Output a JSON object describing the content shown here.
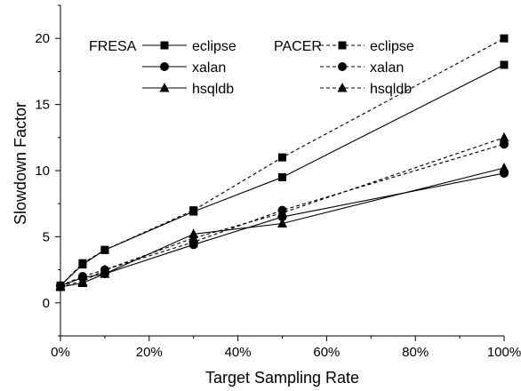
{
  "chart_data": {
    "type": "line",
    "xlabel": "Target Sampling Rate",
    "ylabel": "Slowdown Factor",
    "xlim": [
      0,
      100
    ],
    "ylim": [
      -2.5,
      22.5
    ],
    "x_ticks": [
      0,
      20,
      40,
      60,
      80,
      100
    ],
    "x_tick_labels": [
      "0%",
      "20%",
      "40%",
      "60%",
      "80%",
      "100%"
    ],
    "y_ticks": [
      0,
      5,
      10,
      15,
      20
    ],
    "y_tick_labels": [
      "0",
      "5",
      "10",
      "15",
      "20"
    ],
    "grid": false,
    "legend_position": "top-left",
    "legend_groups": [
      "FRESA",
      "PACER"
    ],
    "series": [
      {
        "name": "eclipse",
        "group": "FRESA",
        "line": "solid",
        "marker": "square",
        "x": [
          0,
          5,
          10,
          30,
          50,
          100
        ],
        "y": [
          1.3,
          2.9,
          4.0,
          6.9,
          9.5,
          18.0
        ]
      },
      {
        "name": "xalan",
        "group": "FRESA",
        "line": "solid",
        "marker": "circle",
        "x": [
          0,
          5,
          10,
          30,
          50,
          100
        ],
        "y": [
          1.3,
          1.9,
          2.2,
          4.4,
          6.5,
          9.8
        ]
      },
      {
        "name": "hsqldb",
        "group": "FRESA",
        "line": "solid",
        "marker": "triangle",
        "x": [
          0,
          5,
          10,
          30,
          50,
          100
        ],
        "y": [
          1.2,
          1.5,
          2.2,
          5.2,
          6.0,
          10.2
        ]
      },
      {
        "name": "eclipse",
        "group": "PACER",
        "line": "dashed",
        "marker": "square",
        "x": [
          0,
          5,
          10,
          30,
          50,
          100
        ],
        "y": [
          1.3,
          3.0,
          4.0,
          7.0,
          11.0,
          20.0
        ]
      },
      {
        "name": "xalan",
        "group": "PACER",
        "line": "dashed",
        "marker": "circle",
        "x": [
          0,
          5,
          10,
          30,
          50,
          100
        ],
        "y": [
          1.3,
          2.0,
          2.5,
          4.6,
          7.0,
          12.0
        ]
      },
      {
        "name": "hsqldb",
        "group": "PACER",
        "line": "dashed",
        "marker": "triangle",
        "x": [
          0,
          5,
          10,
          30,
          50,
          100
        ],
        "y": [
          1.3,
          1.6,
          2.5,
          4.9,
          6.8,
          12.5
        ]
      }
    ]
  }
}
